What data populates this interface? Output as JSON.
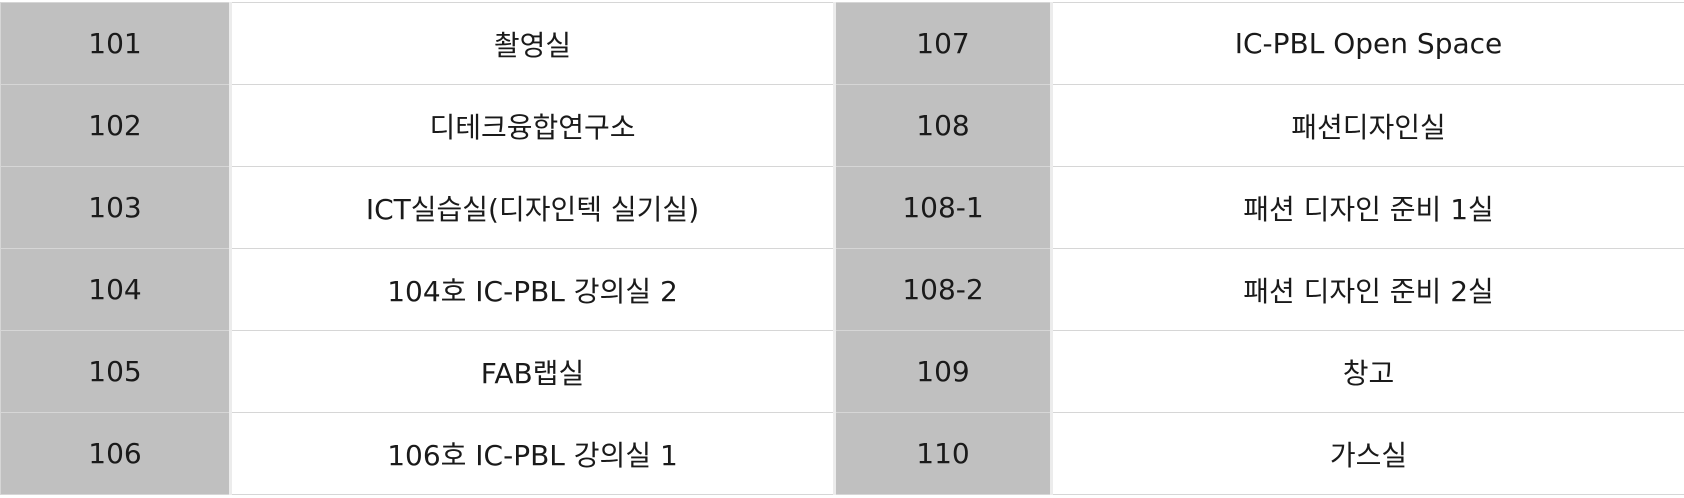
{
  "rooms": {
    "rows": [
      {
        "left_number": "101",
        "left_name": "촬영실",
        "right_number": "107",
        "right_name": "IC-PBL Open Space"
      },
      {
        "left_number": "102",
        "left_name": "디테크융합연구소",
        "right_number": "108",
        "right_name": "패션디자인실"
      },
      {
        "left_number": "103",
        "left_name": "ICT실습실(디자인텍 실기실)",
        "right_number": "108-1",
        "right_name": "패션 디자인 준비 1실"
      },
      {
        "left_number": "104",
        "left_name": "104호 IC-PBL 강의실 2",
        "right_number": "108-2",
        "right_name": "패션 디자인 준비 2실"
      },
      {
        "left_number": "105",
        "left_name": "FAB랩실",
        "right_number": "109",
        "right_name": "창고"
      },
      {
        "left_number": "106",
        "left_name": "106호 IC-PBL 강의실 1",
        "right_number": "110",
        "right_name": "가스실"
      }
    ]
  },
  "colors": {
    "number_cell_background": "#c0c0c0",
    "name_cell_background": "#ffffff",
    "grid_line": "#d6d6d6"
  }
}
